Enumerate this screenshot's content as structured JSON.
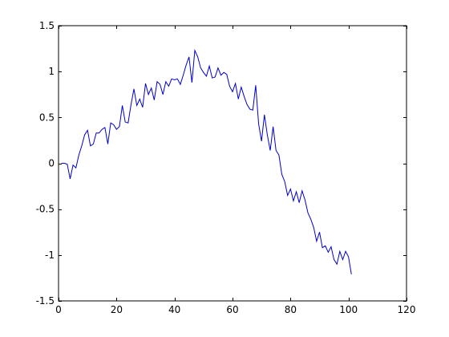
{
  "chart_data": {
    "type": "line",
    "title": "",
    "xlabel": "",
    "ylabel": "",
    "xlim": [
      0,
      120
    ],
    "ylim": [
      -1.5,
      1.5
    ],
    "xticks": [
      0,
      20,
      40,
      60,
      80,
      100,
      120
    ],
    "yticks": [
      -1.5,
      -1,
      -0.5,
      0,
      0.5,
      1,
      1.5
    ],
    "xtick_labels": [
      "0",
      "20",
      "40",
      "60",
      "80",
      "100",
      "120"
    ],
    "ytick_labels": [
      "-1.5",
      "-1",
      "-0.5",
      "0",
      "0.5",
      "1",
      "1.5"
    ],
    "grid": false,
    "legend": "none",
    "series": [
      {
        "color": "#0000cc",
        "x": [
          1,
          2,
          3,
          4,
          5,
          6,
          7,
          8,
          9,
          10,
          11,
          12,
          13,
          14,
          15,
          16,
          17,
          18,
          19,
          20,
          21,
          22,
          23,
          24,
          25,
          26,
          27,
          28,
          29,
          30,
          31,
          32,
          33,
          34,
          35,
          36,
          37,
          38,
          39,
          40,
          41,
          42,
          43,
          44,
          45,
          46,
          47,
          48,
          49,
          50,
          51,
          52,
          53,
          54,
          55,
          56,
          57,
          58,
          59,
          60,
          61,
          62,
          63,
          64,
          65,
          66,
          67,
          68,
          69,
          70,
          71,
          72,
          73,
          74,
          75,
          76,
          77,
          78,
          79,
          80,
          81,
          82,
          83,
          84,
          85,
          86,
          87,
          88,
          89,
          90,
          91,
          92,
          93,
          94,
          95,
          96,
          97,
          98,
          99,
          100,
          101
        ],
        "y": [
          0.0,
          0.0,
          -0.01,
          -0.17,
          -0.02,
          -0.05,
          0.09,
          0.19,
          0.31,
          0.36,
          0.19,
          0.21,
          0.33,
          0.33,
          0.37,
          0.39,
          0.21,
          0.44,
          0.42,
          0.37,
          0.4,
          0.63,
          0.45,
          0.44,
          0.64,
          0.81,
          0.63,
          0.7,
          0.61,
          0.87,
          0.75,
          0.82,
          0.69,
          0.89,
          0.86,
          0.75,
          0.89,
          0.84,
          0.92,
          0.91,
          0.92,
          0.86,
          0.96,
          1.07,
          1.16,
          0.88,
          1.23,
          1.16,
          1.04,
          0.99,
          0.95,
          1.06,
          0.93,
          0.94,
          1.04,
          0.96,
          0.99,
          0.97,
          0.84,
          0.78,
          0.87,
          0.7,
          0.83,
          0.73,
          0.64,
          0.59,
          0.58,
          0.85,
          0.43,
          0.24,
          0.53,
          0.31,
          0.14,
          0.4,
          0.14,
          0.09,
          -0.12,
          -0.2,
          -0.35,
          -0.28,
          -0.41,
          -0.31,
          -0.43,
          -0.3,
          -0.4,
          -0.54,
          -0.61,
          -0.7,
          -0.85,
          -0.75,
          -0.92,
          -0.9,
          -0.97,
          -0.91,
          -1.05,
          -1.1,
          -0.96,
          -1.05,
          -0.96,
          -1.02,
          -1.21
        ]
      }
    ]
  }
}
